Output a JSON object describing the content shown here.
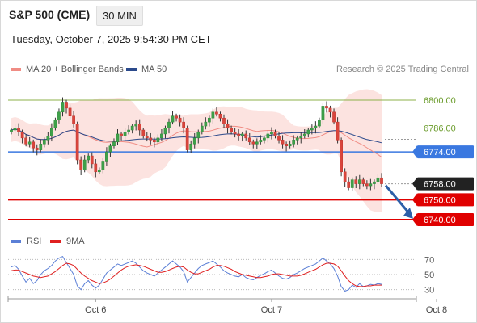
{
  "header": {
    "title": "S&P 500 (CME)",
    "timeframe": "30 MIN",
    "datetime": "Tuesday, October 7, 2025 9:54:30 PM CET"
  },
  "legend": {
    "bollinger": {
      "label": "MA 20 + Bollinger Bands",
      "color": "#f08c84"
    },
    "ma50": {
      "label": "MA 50",
      "color": "#2b4a8c"
    },
    "credit": "Research © 2025 Trading Central"
  },
  "rsi_legend": {
    "rsi": {
      "label": "RSI",
      "color": "#5b7fd6"
    },
    "ma9": {
      "label": "9MA",
      "color": "#e02020"
    }
  },
  "price_levels": [
    {
      "value": 6800,
      "label": "6800.00",
      "kind": "resistance",
      "color": "#8db04a"
    },
    {
      "value": 6786,
      "label": "6786.00",
      "kind": "resistance",
      "color": "#8db04a"
    },
    {
      "value": 6774,
      "label": "6774.00",
      "kind": "pivot",
      "color": "#3a78e0"
    },
    {
      "value": 6758,
      "label": "6758.00",
      "kind": "last",
      "color": "#222222"
    },
    {
      "value": 6750,
      "label": "6750.00",
      "kind": "support",
      "color": "#e00000"
    },
    {
      "value": 6740,
      "label": "6740.00",
      "kind": "support",
      "color": "#e00000"
    }
  ],
  "x_axis": {
    "ticks": [
      {
        "label": "Oct 6",
        "index": 23
      },
      {
        "label": "Oct 7",
        "index": 71
      },
      {
        "label": "Oct 8",
        "index": 116
      }
    ]
  },
  "rsi_axis": {
    "ticks": [
      70,
      50,
      30
    ]
  },
  "chart_data": {
    "type": "candlestick",
    "instrument": "S&P 500 (CME)",
    "interval": "30 MIN",
    "y_range": [
      6740,
      6800
    ],
    "rsi_range": [
      20,
      80
    ],
    "closes": [
      6785,
      6786,
      6784,
      6781,
      6778,
      6779,
      6776,
      6775,
      6778,
      6780,
      6782,
      6786,
      6790,
      6794,
      6799,
      6796,
      6792,
      6788,
      6770,
      6765,
      6770,
      6772,
      6768,
      6764,
      6765,
      6769,
      6774,
      6777,
      6779,
      6783,
      6782,
      6784,
      6785,
      6787,
      6788,
      6785,
      6782,
      6781,
      6780,
      6779,
      6781,
      6783,
      6786,
      6789,
      6792,
      6791,
      6789,
      6786,
      6775,
      6778,
      6781,
      6784,
      6787,
      6789,
      6791,
      6794,
      6793,
      6791,
      6788,
      6786,
      6784,
      6783,
      6782,
      6783,
      6781,
      6779,
      6778,
      6779,
      6780,
      6781,
      6783,
      6784,
      6782,
      6780,
      6778,
      6777,
      6778,
      6780,
      6781,
      6782,
      6783,
      6785,
      6786,
      6787,
      6790,
      6797,
      6796,
      6794,
      6789,
      6780,
      6764,
      6759,
      6756,
      6760,
      6758,
      6760,
      6758,
      6757,
      6758,
      6759,
      6761,
      6758
    ],
    "rsi": [
      60,
      62,
      57,
      48,
      40,
      45,
      38,
      42,
      50,
      55,
      58,
      62,
      68,
      72,
      74,
      66,
      58,
      50,
      35,
      30,
      38,
      42,
      36,
      32,
      36,
      44,
      52,
      56,
      60,
      64,
      62,
      64,
      66,
      68,
      65,
      60,
      55,
      52,
      50,
      48,
      52,
      56,
      60,
      64,
      68,
      64,
      60,
      54,
      40,
      46,
      52,
      58,
      62,
      64,
      66,
      68,
      64,
      60,
      55,
      52,
      50,
      48,
      47,
      50,
      46,
      44,
      43,
      46,
      49,
      51,
      54,
      56,
      52,
      48,
      45,
      44,
      46,
      50,
      52,
      55,
      58,
      60,
      62,
      64,
      68,
      72,
      68,
      64,
      58,
      48,
      34,
      28,
      30,
      36,
      33,
      38,
      34,
      35,
      37,
      36,
      38,
      37
    ],
    "rsi_ma": [
      55,
      56,
      56,
      54,
      52,
      50,
      48,
      47,
      46,
      47,
      48,
      51,
      54,
      58,
      62,
      65,
      64,
      62,
      57,
      52,
      48,
      45,
      42,
      40,
      38,
      39,
      41,
      44,
      48,
      52,
      56,
      59,
      61,
      62,
      63,
      62,
      61,
      59,
      57,
      55,
      53,
      53,
      54,
      56,
      58,
      60,
      61,
      60,
      56,
      53,
      51,
      51,
      53,
      55,
      57,
      60,
      62,
      62,
      61,
      59,
      57,
      54,
      52,
      50,
      49,
      48,
      47,
      46,
      46,
      47,
      48,
      50,
      51,
      51,
      50,
      49,
      48,
      48,
      48,
      49,
      51,
      53,
      55,
      57,
      60,
      63,
      65,
      65,
      64,
      61,
      55,
      48,
      42,
      38,
      35,
      34,
      34,
      35,
      35,
      36,
      36,
      36
    ],
    "x_ticks": [
      "Oct 6",
      "Oct 7",
      "Oct 8"
    ]
  }
}
